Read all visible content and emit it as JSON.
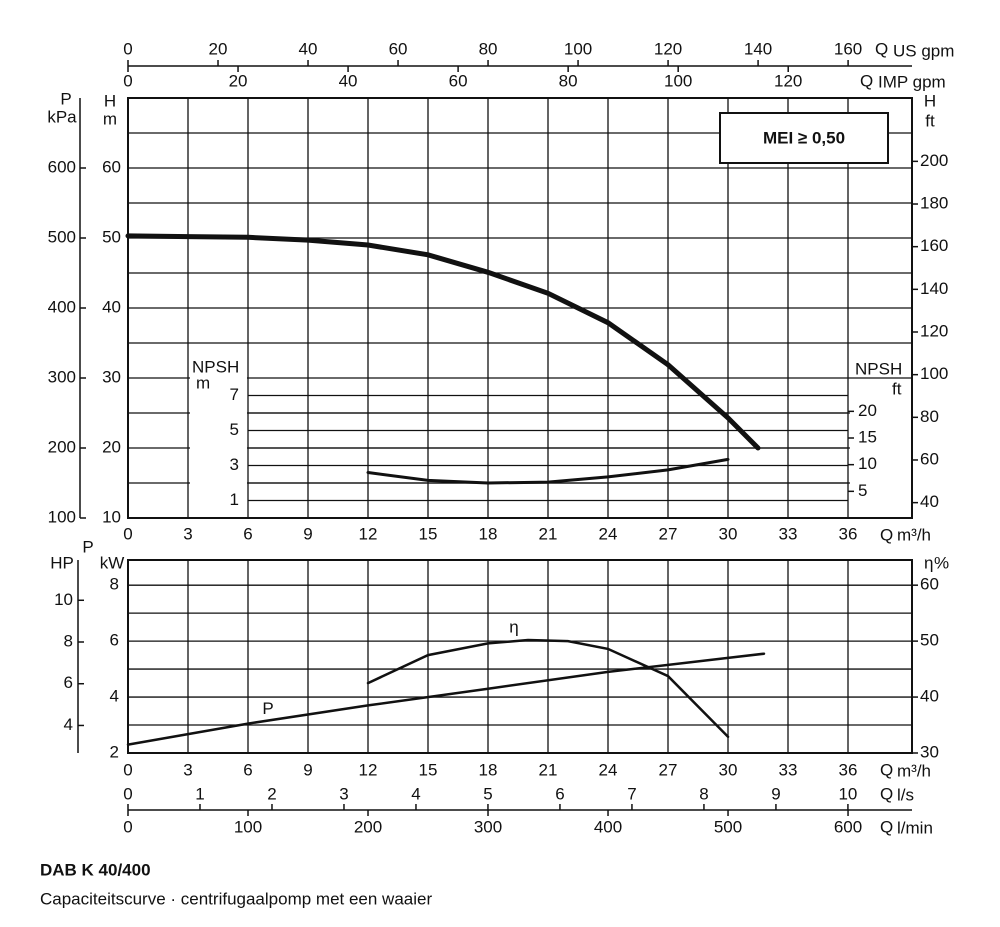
{
  "chart_data": [
    {
      "type": "line",
      "xlabel": "Q",
      "xunit": "m³/h",
      "xlim": [
        0,
        39.2
      ],
      "xticks": [
        0,
        3,
        6,
        9,
        12,
        15,
        18,
        21,
        24,
        27,
        30,
        33,
        36
      ],
      "ylabel": "H",
      "yunit": "m",
      "ylim": [
        10,
        70
      ],
      "yticks": [
        10,
        20,
        30,
        40,
        50,
        60
      ],
      "minor_yticks": [
        15,
        25,
        35,
        45,
        55,
        65
      ],
      "y2label": "H",
      "y2unit": "ft",
      "y2lim": [
        32.8,
        229.7
      ],
      "y2ticks": [
        40,
        60,
        80,
        100,
        120,
        140,
        160,
        180,
        200
      ],
      "extra_axes": [
        {
          "label": "P",
          "unit": "kPa",
          "side": "left",
          "ylim": [
            100,
            700
          ],
          "yticks": [
            100,
            200,
            300,
            400,
            500,
            600
          ]
        },
        {
          "label": "Q",
          "unit": "US gpm",
          "side": "top",
          "xlim": [
            0,
            174.2
          ],
          "xticks": [
            0,
            20,
            40,
            60,
            80,
            100,
            120,
            140,
            160
          ]
        },
        {
          "label": "Q",
          "unit": "IMP gpm",
          "side": "top",
          "xlim": [
            0,
            142.5
          ],
          "xticks": [
            0,
            20,
            40,
            60,
            80,
            100,
            120
          ]
        }
      ],
      "annotation": "MEI ≥ 0,50",
      "grid": true,
      "x": [
        0,
        3,
        6,
        9,
        12,
        15,
        18,
        21,
        24,
        27,
        30,
        31.5
      ],
      "series": [
        {
          "color": "#111111",
          "values": [
            50.3,
            50.2,
            50.1,
            49.7,
            49.0,
            47.6,
            45.1,
            42.1,
            37.9,
            31.9,
            24.3,
            20.0
          ]
        }
      ]
    },
    {
      "type": "line",
      "ylabel": "NPSH",
      "yunit": "m",
      "ylim": [
        0,
        8
      ],
      "yticks": [
        1,
        3,
        5,
        7
      ],
      "minor_yticks": [
        2,
        4,
        6
      ],
      "y2label": "NPSH",
      "y2unit": "ft",
      "y2lim": [
        0,
        26.25
      ],
      "y2ticks": [
        5,
        10,
        15,
        20
      ],
      "xlim": [
        0,
        39.2
      ],
      "x": [
        12,
        15,
        18,
        21,
        24,
        27,
        30
      ],
      "series": [
        {
          "color": "#111111",
          "values": [
            2.6,
            2.15,
            2.0,
            2.05,
            2.35,
            2.75,
            3.35
          ]
        }
      ]
    },
    {
      "type": "line",
      "xlabel": "Q",
      "xunit": "m³/h",
      "xlim": [
        0,
        39.2
      ],
      "xticks": [
        0,
        3,
        6,
        9,
        12,
        15,
        18,
        21,
        24,
        27,
        30,
        33,
        36
      ],
      "ylabel": "P",
      "yunit": "kW",
      "ylim": [
        2,
        8.9
      ],
      "yticks": [
        2,
        4,
        6,
        8
      ],
      "minor_yticks": [
        3,
        5,
        7
      ],
      "y2label": "η",
      "y2unit": "%",
      "y2lim": [
        30,
        64.5
      ],
      "y2ticks": [
        30,
        40,
        50,
        60
      ],
      "extra_axes": [
        {
          "label": "HP",
          "side": "left",
          "ylim": [
            2.68,
            11.93
          ],
          "yticks": [
            4,
            6,
            8,
            10
          ]
        },
        {
          "label": "Q",
          "unit": "l/s",
          "side": "bottom",
          "xlim": [
            0,
            10.89
          ],
          "xticks": [
            0,
            1,
            2,
            3,
            4,
            5,
            6,
            7,
            8,
            9,
            10
          ]
        },
        {
          "label": "Q",
          "unit": "l/min",
          "side": "bottom",
          "xlim": [
            0,
            653.3
          ],
          "xticks": [
            0,
            100,
            200,
            300,
            400,
            500,
            600
          ]
        }
      ],
      "grid": true,
      "series": [
        {
          "name": "P",
          "color": "#111111",
          "axis": "y",
          "x": [
            0,
            6,
            12,
            18,
            24,
            30,
            31.8
          ],
          "values": [
            2.3,
            3.05,
            3.7,
            4.3,
            4.9,
            5.4,
            5.55
          ]
        },
        {
          "name": "η",
          "color": "#111111",
          "axis": "y2",
          "x": [
            12,
            15,
            18,
            20,
            22,
            24,
            27,
            30
          ],
          "values": [
            42.5,
            47.5,
            49.6,
            50.2,
            50.0,
            48.6,
            43.75,
            32.9
          ]
        }
      ]
    }
  ],
  "caption": {
    "title": "DAB K 40/400",
    "subtitle": "Capaciteitscurve · centrifugaalpomp met een waaier"
  }
}
